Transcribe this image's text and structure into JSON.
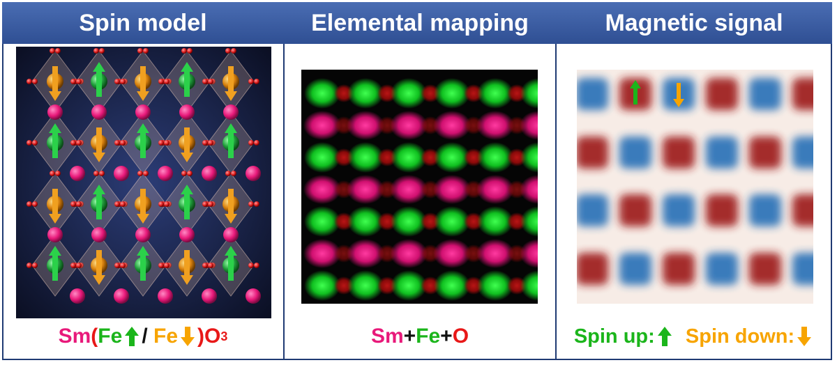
{
  "headers": {
    "spin_model": "Spin model",
    "elemental_mapping": "Elemental mapping",
    "magnetic_signal": "Magnetic signal"
  },
  "captions": {
    "formula": {
      "sm": "Sm",
      "open": "(",
      "fe1": "Fe",
      "slash": "/",
      "fe2": "Fe",
      "close": ")",
      "o": "O",
      "sub3": "3"
    },
    "mapping": {
      "sm": "Sm",
      "plus1": "+",
      "fe": "Fe",
      "plus2": "+",
      "o": "O"
    },
    "spin": {
      "up_label": "Spin up:",
      "down_label": "Spin down:"
    }
  },
  "colors": {
    "header_bg": "#3a5ea6",
    "sm": "#e8197a",
    "fe_up": "#1bb51b",
    "fe_down": "#f7a400",
    "oxygen": "#e81818",
    "mag_up": "#9e1a1a",
    "mag_down": "#2a72b8"
  },
  "icons": [
    "arrow-up-icon",
    "arrow-down-icon"
  ]
}
